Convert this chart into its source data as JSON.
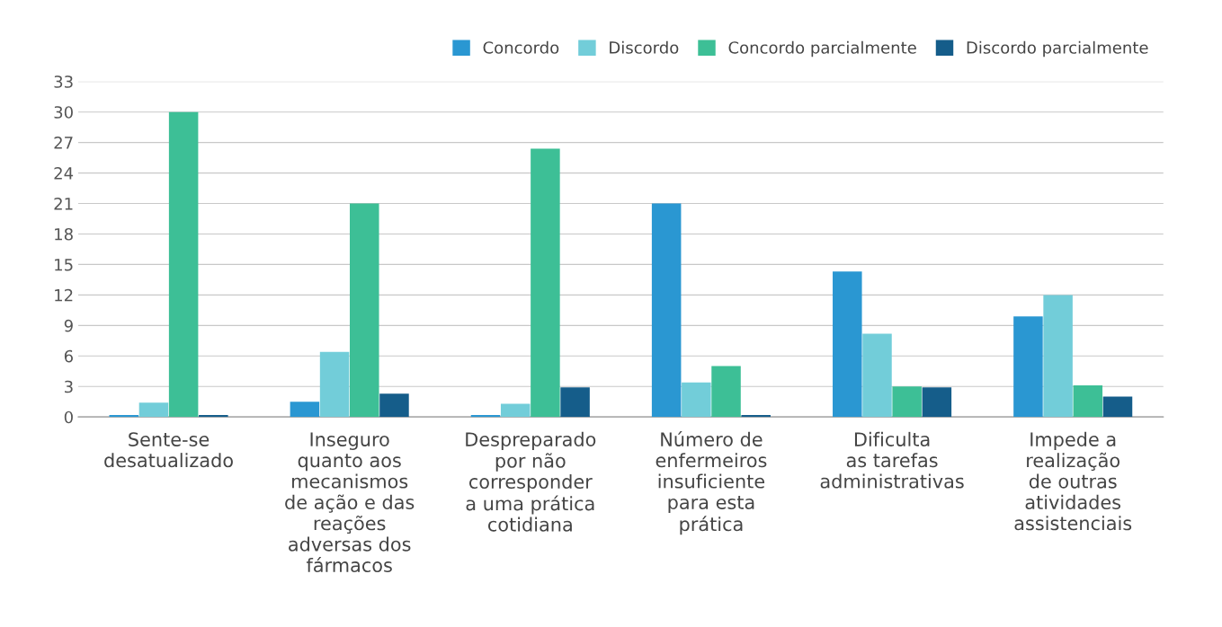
{
  "chart_data": {
    "type": "bar",
    "categories": [
      "Sente-se\ndesatualizado",
      "Inseguro\nquanto aos\nmecanismos\nde ação e das\nreações\nadversas dos\nfármacos",
      "Despreparado\npor não\ncorresponder\na uma prática\ncotidiana",
      "Número de\nenfermeiros\ninsuficiente\npara esta\nprática",
      "Dificulta\nas tarefas\nadministrativas",
      "Impede a\nrealização\nde outras\natividades\nassistenciais"
    ],
    "series": [
      {
        "name": "Concordo",
        "color": "#2a97d2",
        "values": [
          0.2,
          1.5,
          0.2,
          21,
          14.3,
          9.9
        ]
      },
      {
        "name": "Discordo",
        "color": "#72cdd9",
        "values": [
          1.4,
          6.4,
          1.3,
          3.4,
          8.2,
          12
        ]
      },
      {
        "name": "Concordo parcialmente",
        "color": "#3dbf96",
        "values": [
          30,
          21,
          26.4,
          5,
          3,
          3.1
        ]
      },
      {
        "name": "Discordo parcialmente",
        "color": "#155d8a",
        "values": [
          0.2,
          2.3,
          2.9,
          0.2,
          2.9,
          2
        ]
      }
    ],
    "ylim": [
      0,
      33
    ],
    "yticks": [
      0,
      3,
      6,
      9,
      12,
      15,
      18,
      21,
      24,
      27,
      30,
      33
    ],
    "grid": "y",
    "legend": "top right"
  }
}
